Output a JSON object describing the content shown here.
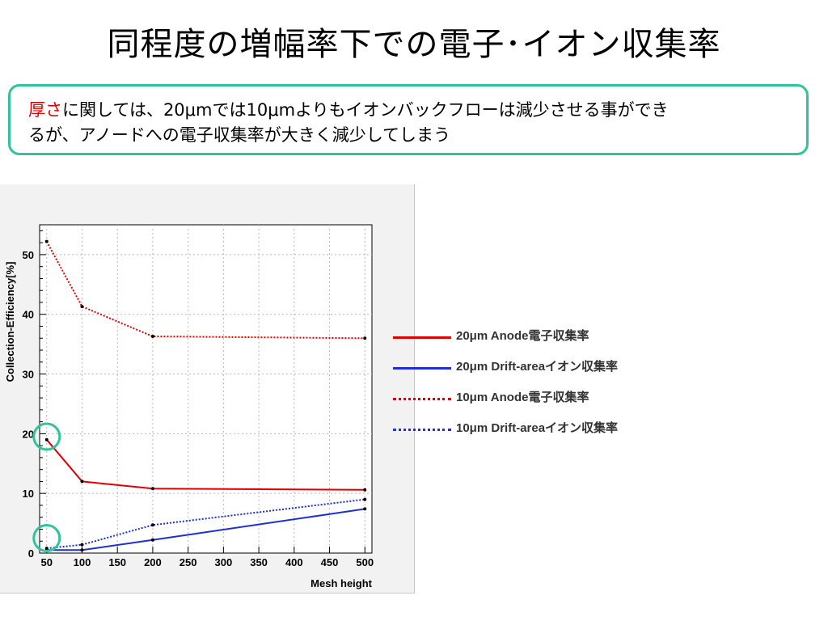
{
  "slide": {
    "title": "同程度の増幅率下での電子･イオン収集率"
  },
  "note": {
    "emphasis": "厚さ",
    "text_line1": "に関しては、20μmでは10μmよりもイオンバックフローは減少させる事ができ",
    "text_line2": "るが、アノードへの電子収集率が大きく減少してしまう"
  },
  "chart_data": {
    "type": "line",
    "x": [
      50,
      100,
      200,
      500
    ],
    "xlim": [
      40,
      510
    ],
    "ylim": [
      0,
      55
    ],
    "xlabel": "Mesh height",
    "ylabel": "Collection-Efficiency[%]",
    "x_ticks": [
      50,
      100,
      150,
      200,
      250,
      300,
      350,
      400,
      450,
      500
    ],
    "y_ticks": [
      0,
      10,
      20,
      30,
      40,
      50
    ],
    "grid": true,
    "legend_position": "right",
    "series": [
      {
        "name": "20μm Anode電子収集率",
        "values": [
          19.0,
          12.0,
          10.8,
          10.6
        ],
        "color": "#e00000",
        "style": "solid"
      },
      {
        "name": "20μm Drift-areaイオン収集率",
        "values": [
          0.5,
          0.5,
          2.2,
          7.4
        ],
        "color": "#1f2fd0",
        "style": "solid"
      },
      {
        "name": "10μm Anode電子収集率",
        "values": [
          52.2,
          41.3,
          36.3,
          36.0
        ],
        "color": "#e00000",
        "style": "dotted"
      },
      {
        "name": "10μm Drift-areaイオン収集率",
        "values": [
          0.8,
          1.4,
          4.7,
          9.0
        ],
        "color": "#1f2fd0",
        "style": "dotted"
      }
    ],
    "annotations": [
      {
        "shape": "circle",
        "x": 50,
        "y": 19.5,
        "color": "#2fc49a"
      },
      {
        "shape": "circle",
        "x": 50,
        "y": 2.5,
        "color": "#2fc49a"
      }
    ]
  }
}
